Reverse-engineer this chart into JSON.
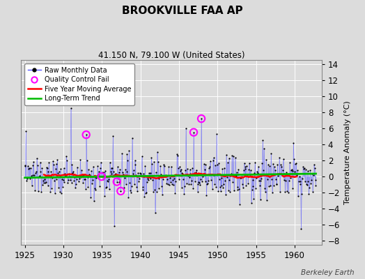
{
  "title": "BROOKVILLE FAA AP",
  "subtitle": "41.150 N, 79.100 W (United States)",
  "ylabel": "Temperature Anomaly (°C)",
  "watermark": "Berkeley Earth",
  "xlim": [
    1924.5,
    1963.5
  ],
  "ylim": [
    -8.5,
    14.5
  ],
  "yticks": [
    -8,
    -6,
    -4,
    -2,
    0,
    2,
    4,
    6,
    8,
    10,
    12,
    14
  ],
  "xticks": [
    1925,
    1930,
    1935,
    1940,
    1945,
    1950,
    1955,
    1960
  ],
  "bg_color": "#dcdcdc",
  "plot_bg_color": "#dcdcdc",
  "raw_color": "#5555ff",
  "dot_color": "#000000",
  "moving_avg_color": "#ff0000",
  "trend_color": "#00bb00",
  "qc_color": "#ff00ff",
  "seed": 137,
  "n_months": 456,
  "start_year": 1925.0,
  "end_year": 1962.75
}
